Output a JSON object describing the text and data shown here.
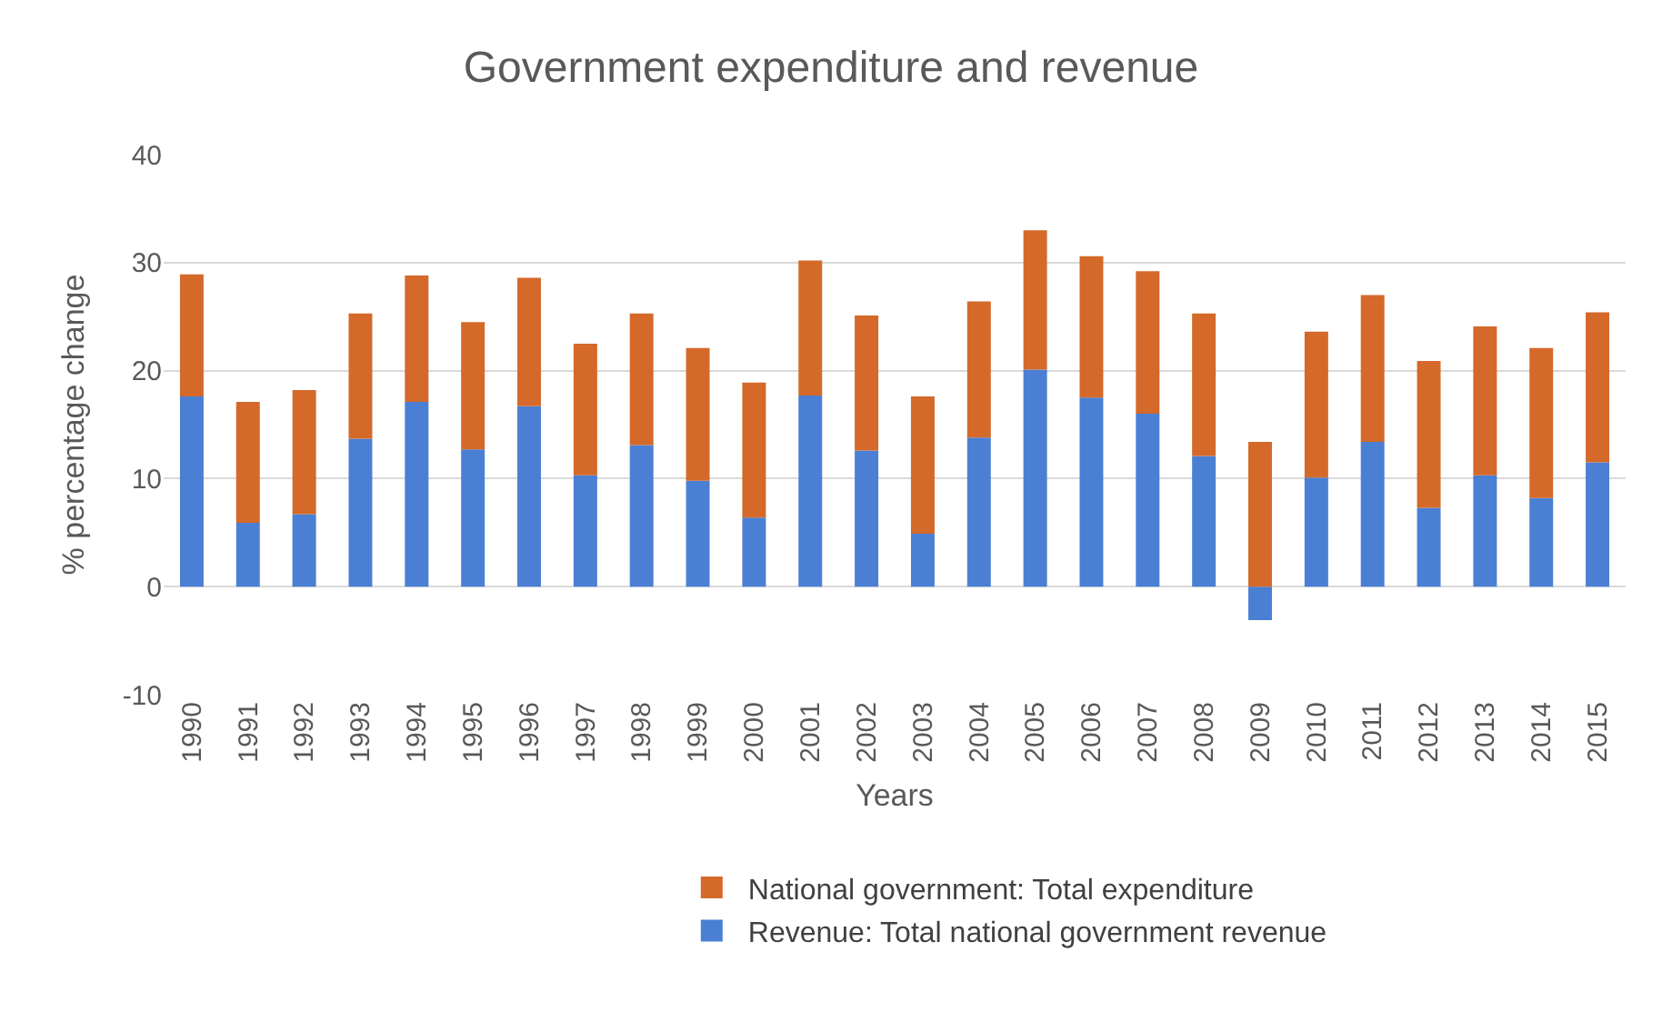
{
  "chart_data": {
    "type": "bar",
    "title": "Government expenditure and revenue",
    "xlabel": "Years",
    "ylabel": "% percentage change",
    "categories": [
      "1990",
      "1991",
      "1992",
      "1993",
      "1994",
      "1995",
      "1996",
      "1997",
      "1998",
      "1999",
      "2000",
      "2001",
      "2002",
      "2003",
      "2004",
      "2005",
      "2006",
      "2007",
      "2008",
      "2009",
      "2010",
      "2011",
      "2012",
      "2013",
      "2014",
      "2015"
    ],
    "series": [
      {
        "name": "Revenue: Total national government revenue",
        "color": "#4a7fd4",
        "values": [
          17.6,
          5.9,
          6.7,
          13.7,
          17.1,
          12.7,
          16.7,
          10.3,
          13.1,
          9.8,
          6.4,
          17.7,
          12.6,
          4.9,
          13.8,
          20.1,
          17.5,
          16.0,
          12.1,
          -3.1,
          10.1,
          13.4,
          7.3,
          10.3,
          8.2,
          11.5
        ]
      },
      {
        "name": "National government: Total expenditure",
        "color": "#d4692a",
        "values": [
          11.3,
          11.2,
          11.5,
          11.6,
          11.7,
          11.8,
          11.9,
          12.2,
          12.2,
          12.3,
          12.5,
          12.5,
          12.5,
          12.7,
          12.6,
          12.9,
          13.1,
          13.2,
          13.2,
          13.4,
          13.5,
          13.6,
          13.6,
          13.8,
          13.9,
          13.9
        ]
      }
    ],
    "stacked": true,
    "ylim": [
      -10,
      40
    ],
    "yticks": [
      -10,
      0,
      10,
      20,
      30,
      40
    ],
    "grid": "y",
    "legend": "bottom"
  }
}
